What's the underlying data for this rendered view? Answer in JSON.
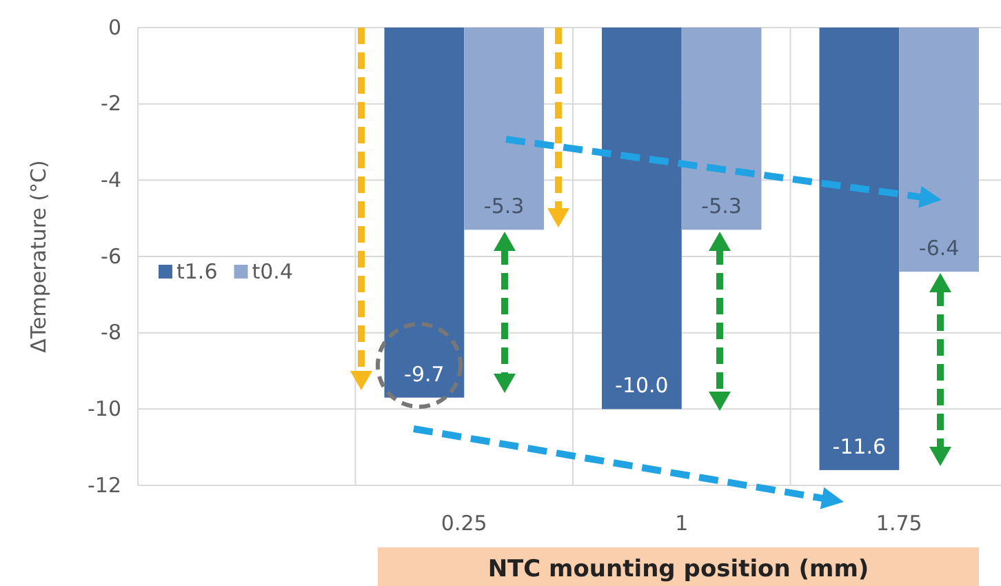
{
  "chart_data": {
    "type": "bar",
    "categories": [
      null,
      "0.25",
      "1",
      "1.75"
    ],
    "series": [
      {
        "name": "t1.6",
        "color": "#416ca6",
        "values": [
          null,
          -9.7,
          -10.0,
          -11.6
        ],
        "value_labels": [
          null,
          "-9.7",
          "-10.0",
          "-11.6"
        ]
      },
      {
        "name": "t0.4",
        "color": "#90a7d0",
        "values": [
          null,
          -5.3,
          -5.3,
          -6.4
        ],
        "value_labels": [
          null,
          "-5.3",
          "-5.3",
          "-6.4"
        ]
      }
    ],
    "xlabel": "NTC mounting position (mm)",
    "ylabel": "ΔTemperature (°C)",
    "ylim": [
      -12,
      0
    ],
    "yticks": [
      -12,
      -10,
      -8,
      -6,
      -4,
      -2,
      0
    ],
    "grid": true,
    "legend": "left"
  }
}
